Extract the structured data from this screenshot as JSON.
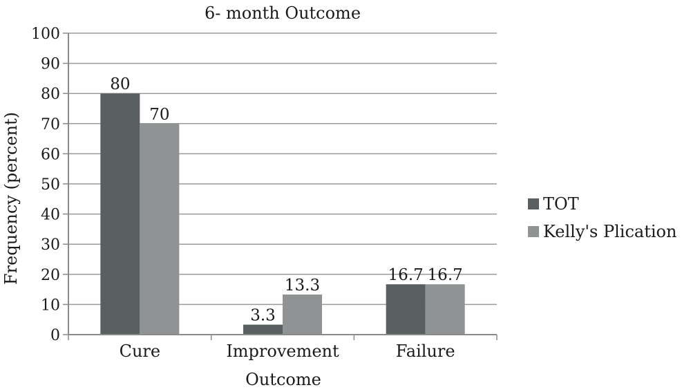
{
  "chart_data": {
    "type": "bar",
    "title": "6-  month Outcome",
    "xlabel": "Outcome",
    "ylabel": "Frequency (percent)",
    "categories": [
      "Cure",
      "Improvement",
      "Failure"
    ],
    "series": [
      {
        "name": "TOT",
        "values": [
          80,
          3.3,
          16.7
        ],
        "color": "#595f61"
      },
      {
        "name": "Kelly's Plication",
        "values": [
          70,
          13.3,
          16.7
        ],
        "color": "#8f9394"
      }
    ],
    "data_labels": [
      [
        "80",
        "3.3",
        "16.7"
      ],
      [
        "70",
        "13.3",
        "16.7"
      ]
    ],
    "ylim": [
      0,
      100
    ],
    "yticks": [
      0,
      10,
      20,
      30,
      40,
      50,
      60,
      70,
      80,
      90,
      100
    ],
    "grid": true,
    "legend_position": "right"
  }
}
